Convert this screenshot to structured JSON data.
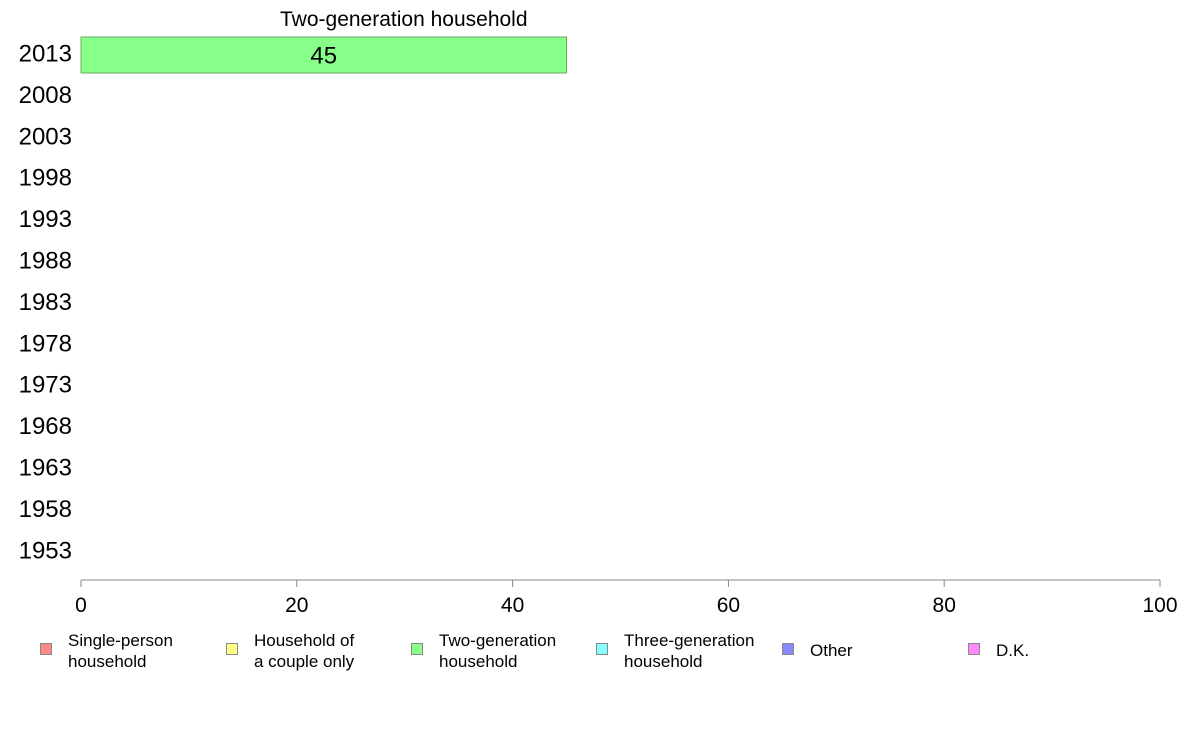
{
  "chart_data": {
    "type": "bar",
    "orientation": "horizontal",
    "title": "Two-generation household",
    "categories": [
      "2013",
      "2008",
      "2003",
      "1998",
      "1993",
      "1988",
      "1983",
      "1978",
      "1973",
      "1968",
      "1963",
      "1958",
      "1953"
    ],
    "series": [
      {
        "name": "Two-generation household",
        "color": "#88ff88",
        "values": [
          45,
          null,
          null,
          null,
          null,
          null,
          null,
          null,
          null,
          null,
          null,
          null,
          null
        ],
        "data_labels": [
          "45",
          "",
          "",
          "",
          "",
          "",
          "",
          "",
          "",
          "",
          "",
          "",
          ""
        ]
      }
    ],
    "xlim": [
      0,
      100
    ],
    "xticks": [
      "0",
      "20",
      "40",
      "60",
      "80",
      "100"
    ],
    "grid": false,
    "legend_position": "bottom"
  },
  "legend": {
    "items": [
      {
        "label": "Single-person\nhousehold",
        "color": "#ff8888"
      },
      {
        "label": "Household of\na couple only",
        "color": "#ffff88"
      },
      {
        "label": "Two-generation\nhousehold",
        "color": "#88ff88"
      },
      {
        "label": "Three-generation\nhousehold",
        "color": "#88ffff"
      },
      {
        "label": "Other",
        "color": "#8888ff"
      },
      {
        "label": "D.K.",
        "color": "#ff88ff"
      }
    ]
  }
}
